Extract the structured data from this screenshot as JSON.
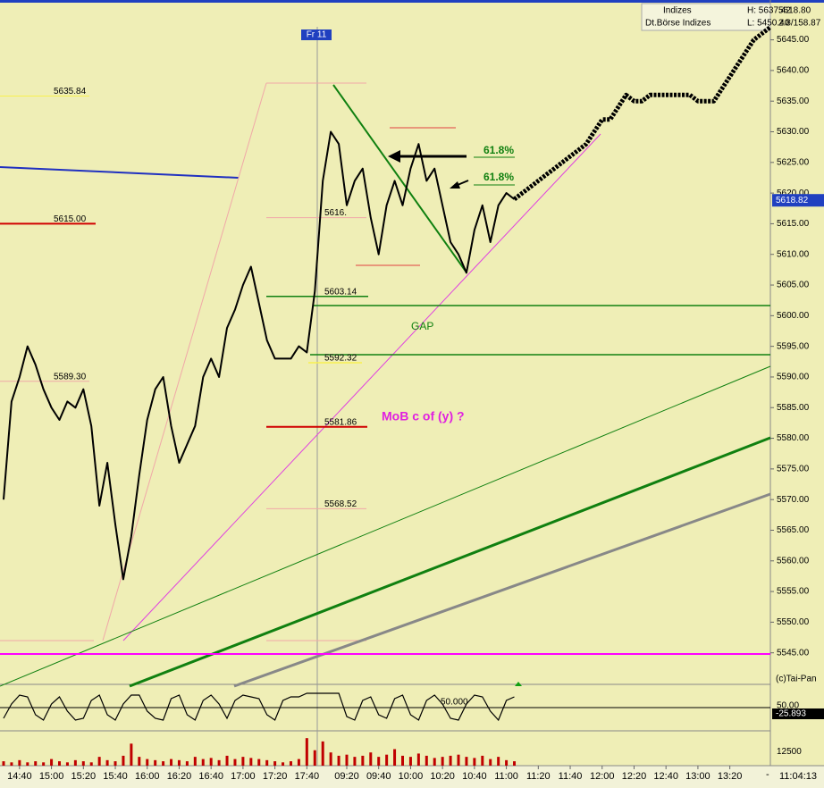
{
  "header": {
    "index_group": "Indizes",
    "exchange": "Dt.Börse Indizes",
    "high": "H: 5637.42",
    "low": "L: 5450.40",
    "last": "5618.80",
    "extra": "2.8/158.87"
  },
  "chart_data": {
    "type": "line",
    "categories": [
      null,
      null,
      "14:40",
      null,
      null,
      null,
      "15:00",
      null,
      null,
      null,
      "15:20",
      null,
      null,
      null,
      "15:40",
      null,
      null,
      null,
      "16:00",
      null,
      null,
      null,
      "16:20",
      null,
      null,
      null,
      "16:40",
      null,
      null,
      null,
      "17:00",
      null,
      null,
      null,
      "17:20",
      null,
      null,
      null,
      "17:40",
      null,
      null,
      null,
      null,
      "09:20",
      null,
      null,
      null,
      "09:40",
      null,
      null,
      null,
      "10:00",
      null,
      null,
      null,
      "10:20",
      null,
      null,
      null,
      "10:40",
      null,
      null,
      null,
      "11:00",
      null,
      null,
      null,
      "11:20",
      null,
      null,
      null,
      "11:40",
      null,
      null,
      null,
      "12:00",
      null,
      null,
      null,
      "12:20",
      null,
      null,
      null,
      "12:40",
      null,
      null,
      null,
      "13:00",
      null,
      null,
      null,
      "13:20",
      null,
      null,
      null,
      null,
      null
    ],
    "series": [
      {
        "color": "#000000",
        "values": [
          5570,
          5586,
          5590,
          5595,
          5592,
          5588,
          5585,
          5583,
          5586,
          5585,
          5588,
          5582,
          5569,
          5576,
          5566,
          5557,
          5564,
          5574,
          5583,
          5588,
          5590,
          5582,
          5576,
          5579,
          5582,
          5590,
          5593,
          5590,
          5598,
          5601,
          5605,
          5608,
          5602,
          5596,
          5593,
          5593,
          5593,
          5595,
          5594,
          5604,
          5622,
          5630,
          5628,
          5618,
          5622,
          5624,
          5616,
          5610,
          5618,
          5622,
          5618,
          5624,
          5628,
          5622,
          5624,
          5618,
          5612,
          5610,
          5607,
          5614,
          5618,
          5612,
          5618,
          5620,
          5619,
          null,
          null,
          null,
          null,
          null,
          null,
          null,
          null,
          null,
          null,
          null,
          null,
          null,
          null,
          null,
          null,
          null,
          null,
          null,
          null,
          null,
          null,
          null,
          null,
          null,
          null,
          null,
          null,
          null,
          null,
          null,
          null
        ]
      },
      {
        "color": "#000000",
        "dashed": true,
        "values": [
          null,
          null,
          null,
          null,
          null,
          null,
          null,
          null,
          null,
          null,
          null,
          null,
          null,
          null,
          null,
          null,
          null,
          null,
          null,
          null,
          null,
          null,
          null,
          null,
          null,
          null,
          null,
          null,
          null,
          null,
          null,
          null,
          null,
          null,
          null,
          null,
          null,
          null,
          null,
          null,
          null,
          null,
          null,
          null,
          null,
          null,
          null,
          null,
          null,
          null,
          null,
          null,
          null,
          null,
          null,
          null,
          null,
          null,
          null,
          null,
          null,
          null,
          null,
          null,
          5619,
          5620,
          5621,
          5622,
          5623,
          5624,
          5625,
          5626,
          5627,
          5628,
          5630,
          5632,
          5632,
          5634,
          5636,
          5635,
          5635,
          5636,
          5636,
          5636,
          5636,
          5636,
          5636,
          5635,
          5635,
          5635,
          5637,
          5639,
          5641,
          5643,
          5645,
          5646,
          5647
        ]
      }
    ],
    "ylim": [
      5540,
      5651.5
    ],
    "yticks": [
      {
        "value": 5545,
        "label": "5545.00"
      },
      {
        "value": 5550,
        "label": "5550.00"
      },
      {
        "value": 5555,
        "label": "5555.00"
      },
      {
        "value": 5560,
        "label": "5560.00"
      },
      {
        "value": 5565,
        "label": "5565.00"
      },
      {
        "value": 5570,
        "label": "5570.00"
      },
      {
        "value": 5575,
        "label": "5575.00"
      },
      {
        "value": 5580,
        "label": "5580.00"
      },
      {
        "value": 5585,
        "label": "5585.00"
      },
      {
        "value": 5590,
        "label": "5590.00"
      },
      {
        "value": 5595,
        "label": "5595.00"
      },
      {
        "value": 5600,
        "label": "5600.00"
      },
      {
        "value": 5605,
        "label": "5605.00"
      },
      {
        "value": 5610,
        "label": "5610.00"
      },
      {
        "value": 5615,
        "label": "5615.00"
      },
      {
        "value": 5620,
        "label": "5620.00"
      },
      {
        "value": 5625,
        "label": "5625.00"
      },
      {
        "value": 5630,
        "label": "5630.00"
      },
      {
        "value": 5635,
        "label": "5635.00"
      },
      {
        "value": 5640,
        "label": "5640.00"
      },
      {
        "value": 5645,
        "label": "5645.00"
      }
    ],
    "current_price": 5618.82,
    "levels": [
      {
        "value": 5635.84,
        "label": "5635.84"
      },
      {
        "value": 5615,
        "label": "5615.00"
      },
      {
        "value": 5589.3,
        "label": "5589.30"
      },
      {
        "value": 5616,
        "label": "5616."
      },
      {
        "value": 5603.14,
        "label": "5603.14"
      },
      {
        "value": 5592.32,
        "label": "5592.32"
      },
      {
        "value": 5581.86,
        "label": "5581.86"
      },
      {
        "value": 5568.52,
        "label": "5568.52"
      }
    ],
    "annotations": {
      "gap": "GAP",
      "mob": "MoB c of (y) ?",
      "fib_1": "61.8%",
      "fib_2": "61.8%",
      "day_marker": "Fr 11",
      "copyright": "(c)Tai-Pan",
      "clock": "11:04:13",
      "x_end_marker": "-"
    },
    "oscillator": {
      "color": "#000000",
      "ylim": [
        0,
        100
      ],
      "yticks": [
        {
          "value": 50,
          "label": "50.00"
        }
      ],
      "current": -25.893,
      "mid_label": {
        "value": 50,
        "label": "50.000"
      },
      "values": [
        20,
        60,
        85,
        80,
        30,
        15,
        60,
        80,
        40,
        15,
        20,
        70,
        85,
        30,
        15,
        60,
        85,
        85,
        40,
        20,
        15,
        75,
        85,
        30,
        15,
        70,
        85,
        60,
        20,
        70,
        85,
        80,
        75,
        30,
        15,
        70,
        80,
        80,
        90,
        90,
        90,
        90,
        90,
        25,
        15,
        70,
        80,
        30,
        20,
        75,
        85,
        30,
        15,
        70,
        85,
        60,
        20,
        15,
        60,
        85,
        80,
        40,
        15,
        70,
        80,
        null,
        null,
        null,
        null,
        null,
        null,
        null,
        null,
        null,
        null,
        null,
        null,
        null,
        null,
        null,
        null,
        null,
        null,
        null,
        null,
        null,
        null,
        null,
        null,
        null,
        null,
        null,
        null,
        null,
        null,
        null,
        null
      ]
    },
    "volume": {
      "color": "#c00000",
      "ylim": [
        0,
        30000
      ],
      "yticks": [
        12500
      ],
      "values": [
        4000,
        3000,
        5000,
        3000,
        4000,
        3000,
        6000,
        4000,
        3000,
        5000,
        4000,
        3000,
        8000,
        5000,
        4000,
        9000,
        20000,
        8000,
        6000,
        5000,
        4000,
        6000,
        5000,
        4000,
        8000,
        6000,
        7000,
        5000,
        9000,
        6000,
        8000,
        7000,
        6000,
        5000,
        4000,
        3000,
        4000,
        6000,
        25000,
        14000,
        22000,
        12000,
        9000,
        10000,
        8000,
        9000,
        12000,
        8000,
        10000,
        15000,
        9000,
        8000,
        11000,
        9000,
        7000,
        8000,
        9000,
        10000,
        8000,
        7000,
        9000,
        6000,
        8000,
        5000,
        4000,
        null,
        null,
        null,
        null,
        null,
        null,
        null,
        null,
        null,
        null,
        null,
        null,
        null,
        null,
        null,
        null,
        null,
        null,
        null,
        null,
        null,
        null,
        null,
        null,
        null,
        null,
        null,
        null,
        null,
        null,
        null,
        null
      ]
    }
  }
}
